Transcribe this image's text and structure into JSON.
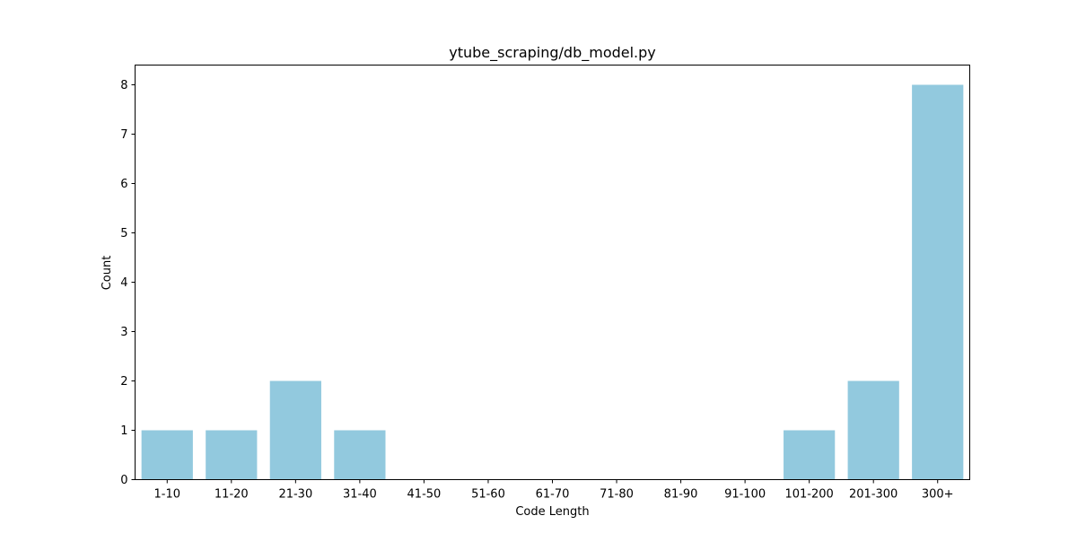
{
  "chart_data": {
    "type": "bar",
    "title": "ytube_scraping/db_model.py",
    "xlabel": "Code Length",
    "ylabel": "Count",
    "categories": [
      "1-10",
      "11-20",
      "21-30",
      "31-40",
      "41-50",
      "51-60",
      "61-70",
      "71-80",
      "81-90",
      "91-100",
      "101-200",
      "201-300",
      "300+"
    ],
    "values": [
      1,
      1,
      2,
      1,
      0,
      0,
      0,
      0,
      0,
      0,
      1,
      2,
      8
    ],
    "y_ticks": [
      0,
      1,
      2,
      3,
      4,
      5,
      6,
      7,
      8
    ],
    "ylim": [
      0,
      8.4
    ],
    "grid": false,
    "bar_color": "#92c9de"
  }
}
